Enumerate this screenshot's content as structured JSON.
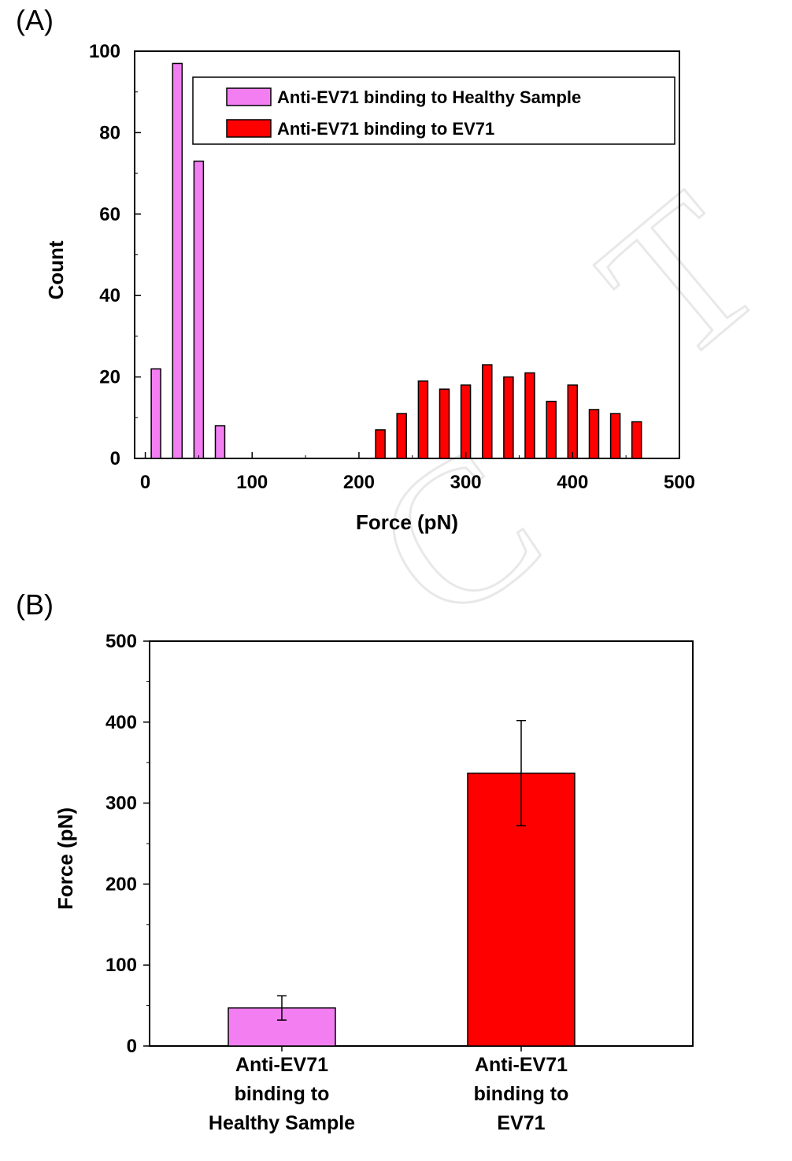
{
  "colors": {
    "pink": "#f27ef2",
    "red": "#ff0000",
    "axis": "#000000"
  },
  "chart_data": [
    {
      "panel_label": "(A)",
      "type": "bar",
      "xlabel": "Force (pN)",
      "ylabel": "Count",
      "xlim": [
        -10,
        500
      ],
      "ylim": [
        0,
        100
      ],
      "xticks": [
        "0",
        "100",
        "200",
        "300",
        "400",
        "500"
      ],
      "yticks": [
        "0",
        "20",
        "40",
        "60",
        "80",
        "100"
      ],
      "legend_position": "top-right",
      "series": [
        {
          "name": "Anti-EV71 binding to Healthy Sample",
          "color": "#f27ef2",
          "points": [
            {
              "x": 10,
              "y": 22
            },
            {
              "x": 30,
              "y": 97
            },
            {
              "x": 50,
              "y": 73
            },
            {
              "x": 70,
              "y": 8
            }
          ]
        },
        {
          "name": "Anti-EV71 binding to EV71",
          "color": "#ff0000",
          "points": [
            {
              "x": 220,
              "y": 7
            },
            {
              "x": 240,
              "y": 11
            },
            {
              "x": 260,
              "y": 19
            },
            {
              "x": 280,
              "y": 17
            },
            {
              "x": 300,
              "y": 18
            },
            {
              "x": 320,
              "y": 23
            },
            {
              "x": 340,
              "y": 20
            },
            {
              "x": 360,
              "y": 21
            },
            {
              "x": 380,
              "y": 14
            },
            {
              "x": 400,
              "y": 18
            },
            {
              "x": 420,
              "y": 12
            },
            {
              "x": 440,
              "y": 11
            },
            {
              "x": 460,
              "y": 9
            }
          ]
        }
      ]
    },
    {
      "panel_label": "(B)",
      "type": "bar",
      "xlabel": "",
      "ylabel": "Force (pN)",
      "ylim": [
        0,
        500
      ],
      "yticks": [
        "0",
        "100",
        "200",
        "300",
        "400",
        "500"
      ],
      "categories": [
        {
          "lines": [
            "Anti-EV71",
            "binding to",
            "Healthy Sample"
          ],
          "value": 47,
          "error": 15,
          "color": "#f27ef2"
        },
        {
          "lines": [
            "Anti-EV71",
            "binding to",
            "EV71"
          ],
          "value": 337,
          "error": 65,
          "color": "#ff0000"
        }
      ]
    }
  ]
}
